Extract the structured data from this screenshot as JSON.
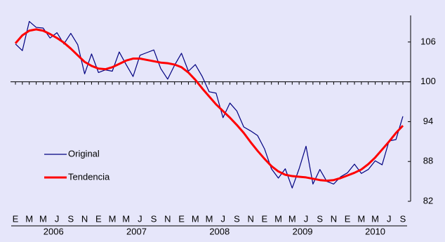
{
  "chart_data": {
    "type": "line",
    "categories": [
      "E",
      null,
      "M",
      null,
      "M",
      null,
      "J",
      null,
      "S",
      null,
      "N",
      null,
      "E",
      null,
      "M",
      null,
      "M",
      null,
      "J",
      null,
      "S",
      null,
      "N",
      null,
      "E",
      null,
      "M",
      null,
      "M",
      null,
      "J",
      null,
      "S",
      null,
      "N",
      null,
      "E",
      null,
      "M",
      null,
      "M",
      null,
      "J",
      null,
      "S",
      null,
      "N",
      null,
      "E",
      null,
      "M",
      null,
      "M",
      null,
      "J",
      null,
      "S"
    ],
    "years": [
      "2006",
      "2007",
      "2008",
      "2009",
      "2010"
    ],
    "series": [
      {
        "name": "Original",
        "color": "#000080",
        "values": [
          105.7,
          104.7,
          109.1,
          108.2,
          108.1,
          106.6,
          107.4,
          105.7,
          107.3,
          105.6,
          101.2,
          104.2,
          101.4,
          101.8,
          101.6,
          104.5,
          102.6,
          100.8,
          104.0,
          104.4,
          104.8,
          102.0,
          100.4,
          102.5,
          104.3,
          101.6,
          102.6,
          100.8,
          98.5,
          98.3,
          94.6,
          96.8,
          95.6,
          93.2,
          92.6,
          91.9,
          89.9,
          86.9,
          85.5,
          86.9,
          84.0,
          86.9,
          90.3,
          84.6,
          86.8,
          85.0,
          84.6,
          85.7,
          86.3,
          87.6,
          86.2,
          86.8,
          88.1,
          87.5,
          91.1,
          91.3,
          94.8
        ]
      },
      {
        "name": "Tendencia",
        "color": "#ff0000",
        "values": [
          105.8,
          107.0,
          107.7,
          107.9,
          107.7,
          107.2,
          106.6,
          105.9,
          105.0,
          104.0,
          103.0,
          102.4,
          102.0,
          101.9,
          102.2,
          102.7,
          103.2,
          103.5,
          103.5,
          103.3,
          103.1,
          102.9,
          102.8,
          102.6,
          102.2,
          101.4,
          100.3,
          99.0,
          97.8,
          96.6,
          95.6,
          94.6,
          93.5,
          92.3,
          90.9,
          89.6,
          88.4,
          87.3,
          86.5,
          86.0,
          85.8,
          85.7,
          85.6,
          85.4,
          85.2,
          85.1,
          85.2,
          85.5,
          85.9,
          86.3,
          86.8,
          87.6,
          88.6,
          89.8,
          91.0,
          92.3,
          93.4
        ]
      }
    ],
    "ylim": [
      82,
      110
    ],
    "yticks": [
      82,
      88,
      94,
      100,
      106
    ],
    "xaxis_at": 100,
    "background": "#e6e6fa"
  }
}
